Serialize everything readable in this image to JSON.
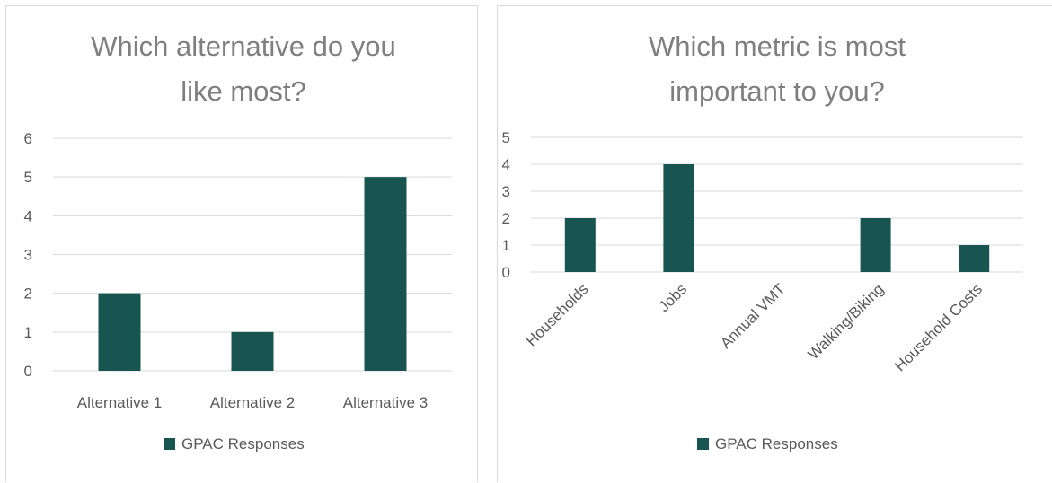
{
  "chart_data": [
    {
      "type": "bar",
      "title_lines": [
        "Which alternative do you",
        "like most?"
      ],
      "categories": [
        "Alternative 1",
        "Alternative 2",
        "Alternative 3"
      ],
      "series": [
        {
          "name": "GPAC Responses",
          "values": [
            2,
            1,
            5
          ]
        }
      ],
      "yticks": [
        "0",
        "1",
        "2",
        "3",
        "4",
        "5",
        "6"
      ],
      "ylim": [
        0,
        6
      ],
      "grid": true,
      "legend_position": "bottom",
      "bar_color": "#185450",
      "grid_color": "#d9d9d9"
    },
    {
      "type": "bar",
      "title_lines": [
        "Which metric is most",
        "important to you?"
      ],
      "categories": [
        "Households",
        "Jobs",
        "Annual VMT",
        "Walking/Biking",
        "Household Costs"
      ],
      "series": [
        {
          "name": "GPAC Responses",
          "values": [
            2,
            4,
            0,
            2,
            1
          ]
        }
      ],
      "yticks": [
        "0",
        "1",
        "2",
        "3",
        "4",
        "5"
      ],
      "ylim": [
        0,
        5
      ],
      "grid": true,
      "legend_position": "bottom",
      "category_label_rotation": -45,
      "bar_color": "#185450",
      "grid_color": "#d9d9d9"
    }
  ]
}
